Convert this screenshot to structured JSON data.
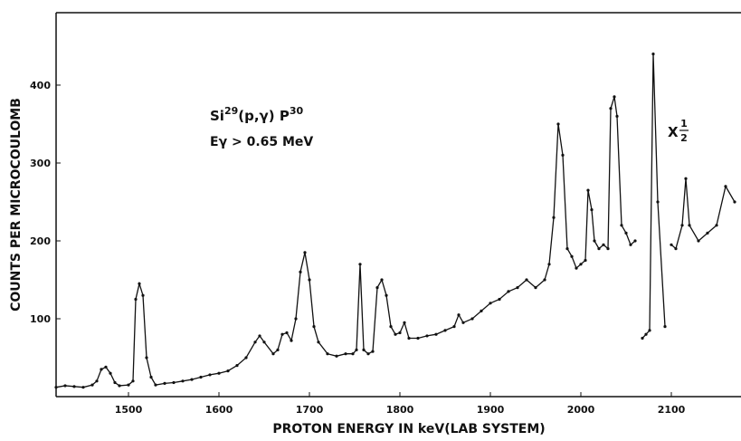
{
  "chart_data": {
    "type": "line",
    "x_label": "PROTON ENERGY IN keV(LAB SYSTEM)",
    "y_label": "COUNTS PER MICROCOULOMB",
    "annotations": {
      "reaction": {
        "base": "Si",
        "mass_in": "29",
        "middle": "(p,γ) P",
        "mass_out": "30"
      },
      "threshold": "Eγ > 0.65 MeV",
      "scale_note": {
        "symbol": "X",
        "numerator": "1",
        "denominator": "2"
      }
    },
    "color": "#111111",
    "x": [
      1420,
      1430,
      1440,
      1450,
      1460,
      1465,
      1470,
      1475,
      1480,
      1485,
      1490,
      1500,
      1505,
      1508,
      1512,
      1516,
      1520,
      1525,
      1530,
      1540,
      1550,
      1560,
      1570,
      1580,
      1590,
      1600,
      1610,
      1620,
      1630,
      1640,
      1645,
      1650,
      1660,
      1665,
      1670,
      1675,
      1680,
      1685,
      1690,
      1695,
      1700,
      1705,
      1710,
      1720,
      1730,
      1740,
      1748,
      1752,
      1756,
      1760,
      1765,
      1770,
      1775,
      1780,
      1785,
      1790,
      1795,
      1800,
      1805,
      1810,
      1820,
      1830,
      1840,
      1850,
      1860,
      1865,
      1870,
      1880,
      1890,
      1900,
      1910,
      1920,
      1930,
      1940,
      1950,
      1960,
      1965,
      1970,
      1975,
      1980,
      1985,
      1990,
      1995,
      2000,
      2005,
      2008,
      2012,
      2015,
      2020,
      2025,
      2030,
      2033,
      2037,
      2040,
      2045,
      2050,
      2055,
      2060,
      2064,
      2068,
      2072,
      2076,
      2080,
      2085,
      2093,
      2097,
      2100,
      2105,
      2112,
      2116,
      2120,
      2130,
      2140,
      2150,
      2160,
      2170
    ],
    "values": [
      12,
      14,
      13,
      12,
      15,
      20,
      35,
      38,
      30,
      18,
      14,
      15,
      20,
      125,
      145,
      130,
      50,
      25,
      15,
      17,
      18,
      20,
      22,
      25,
      28,
      30,
      33,
      40,
      50,
      70,
      78,
      70,
      55,
      60,
      80,
      82,
      72,
      100,
      160,
      185,
      150,
      90,
      70,
      55,
      52,
      55,
      55,
      60,
      170,
      60,
      55,
      58,
      140,
      150,
      130,
      90,
      80,
      82,
      95,
      75,
      75,
      78,
      80,
      85,
      90,
      105,
      95,
      100,
      110,
      120,
      125,
      135,
      140,
      150,
      140,
      150,
      170,
      230,
      350,
      310,
      190,
      180,
      165,
      170,
      175,
      265,
      240,
      200,
      190,
      195,
      190,
      370,
      385,
      360,
      220,
      210,
      195,
      200,
      null,
      75,
      80,
      85,
      440,
      250,
      90,
      null,
      195,
      190,
      220,
      280,
      220,
      200,
      210,
      220,
      270,
      250
    ],
    "xlim": [
      1420,
      2177
    ],
    "ylim": [
      0,
      493
    ],
    "xticks": [
      1500,
      1600,
      1700,
      1800,
      1900,
      2000,
      2100
    ],
    "yticks": [
      100,
      200,
      300,
      400
    ]
  }
}
